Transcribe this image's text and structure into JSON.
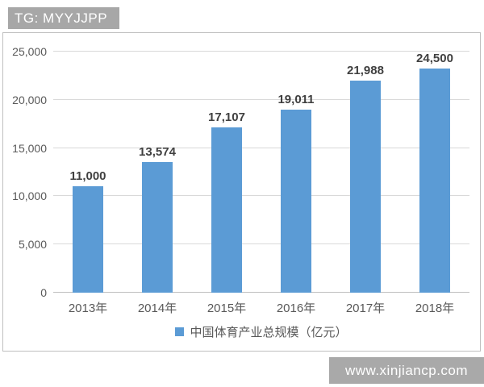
{
  "watermark_top": {
    "label": "TG: MYYJJPP",
    "bg": "#a7a7a7"
  },
  "watermark_bottom": {
    "label": "www.xinjiancp.com",
    "bg": "#a9a9a9"
  },
  "chart_data": {
    "type": "bar",
    "categories": [
      "2013年",
      "2014年",
      "2015年",
      "2016年",
      "2017年",
      "2018年"
    ],
    "values": [
      11000,
      13574,
      17107,
      19011,
      21988,
      24500
    ],
    "value_labels": [
      "11,000",
      "13,574",
      "17,107",
      "19,011",
      "21,988",
      "24,500"
    ],
    "title": "",
    "xlabel": "",
    "ylabel": "",
    "ylim": [
      0,
      25000
    ],
    "y_ticks": [
      0,
      5000,
      10000,
      15000,
      20000,
      25000
    ],
    "y_tick_labels": [
      "0",
      "5,000",
      "10,000",
      "15,000",
      "20,000",
      "25,000"
    ],
    "grid": true,
    "legend_position": "bottom",
    "legend_label": "中国体育产业总规模（亿元）",
    "bar_color": "#5b9bd5",
    "gridline_color": "#d9d9d9"
  }
}
